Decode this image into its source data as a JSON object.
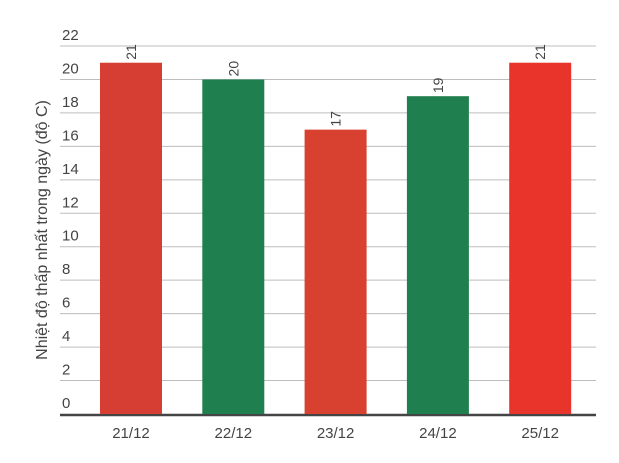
{
  "chart_data": {
    "type": "bar",
    "title": "",
    "xlabel": "",
    "ylabel": "Nhiệt độ thấp nhất trong ngày (độ C)",
    "categories": [
      "21/12",
      "22/12",
      "23/12",
      "24/12",
      "25/12"
    ],
    "values": [
      21,
      20,
      17,
      19,
      21
    ],
    "colors": [
      "#d63e33",
      "#1f7f4f",
      "#d8412f",
      "#1f7f4f",
      "#e8342a"
    ],
    "ylim": [
      0,
      22
    ],
    "yticks": [
      0,
      2,
      4,
      6,
      8,
      10,
      12,
      14,
      16,
      18,
      20,
      22
    ],
    "grid": true,
    "data_labels": true,
    "legend": "none"
  }
}
